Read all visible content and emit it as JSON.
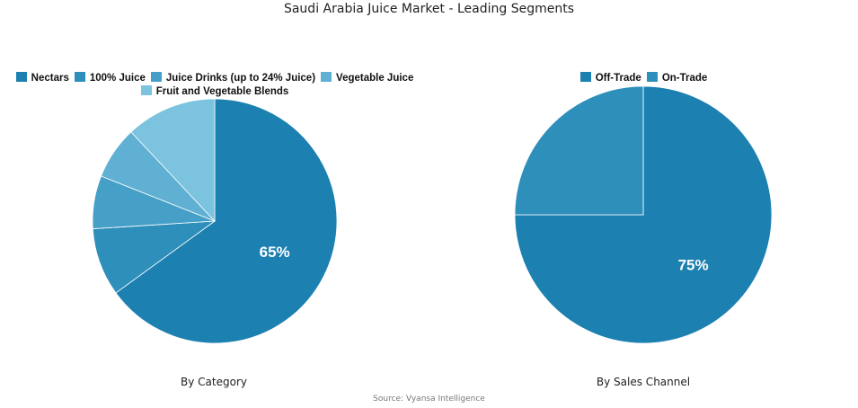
{
  "title": "Saudi Arabia Juice Market - Leading Segments",
  "source": "Source: Vyansa Intelligence",
  "chart_data": [
    {
      "type": "pie",
      "title": "By Category",
      "start_angle_deg": 0,
      "direction": "clockwise",
      "legend_position": "top",
      "slices": [
        {
          "label": "Nectars",
          "value": 65,
          "color": "#1c80b0",
          "show_label": true
        },
        {
          "label": "100% Juice",
          "value": 9,
          "color": "#2e8fbb",
          "show_label": false
        },
        {
          "label": "Juice Drinks (up to 24% Juice)",
          "value": 7,
          "color": "#459fc7",
          "show_label": false
        },
        {
          "label": "Vegetable Juice",
          "value": 7,
          "color": "#5fb0d2",
          "show_label": false
        },
        {
          "label": "Fruit and Vegetable Blends",
          "value": 12,
          "color": "#7bc3de",
          "show_label": false
        }
      ]
    },
    {
      "type": "pie",
      "title": "By Sales Channel",
      "start_angle_deg": 0,
      "direction": "clockwise",
      "legend_position": "top",
      "slices": [
        {
          "label": "Off-Trade",
          "value": 75,
          "color": "#1c80b0",
          "show_label": true
        },
        {
          "label": "On-Trade",
          "value": 25,
          "color": "#2e8fbb",
          "show_label": false
        }
      ]
    }
  ]
}
